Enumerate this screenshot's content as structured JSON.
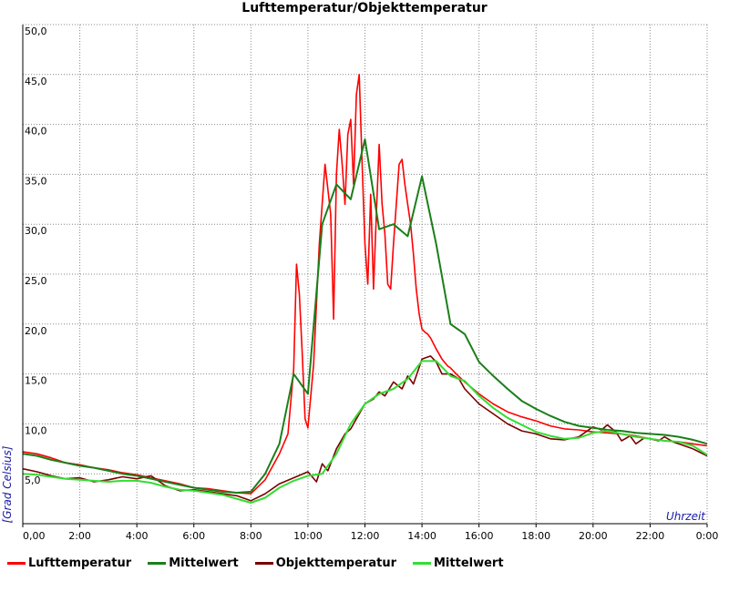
{
  "chart_data": {
    "type": "line",
    "title": "Lufttemperatur/Objekttemperatur",
    "xlabel": "Uhrzeit",
    "ylabel": "[Grad Celsius]",
    "xlim": [
      0,
      24
    ],
    "ylim": [
      0,
      50
    ],
    "x_ticks": [
      "0,00",
      "2:00",
      "4:00",
      "6:00",
      "8:00",
      "10:00",
      "12:00",
      "14:00",
      "16:00",
      "18:00",
      "20:00",
      "22:00",
      "0:00"
    ],
    "y_ticks": [
      "5,0",
      "10,0",
      "15,0",
      "20,0",
      "25,0",
      "30,0",
      "35,0",
      "40,0",
      "45,0",
      "50,0"
    ],
    "grid": true,
    "legend_position": "bottom",
    "series": [
      {
        "name": "Lufttemperatur",
        "color": "#ff0000",
        "x": [
          0,
          0.5,
          1,
          1.5,
          2,
          2.5,
          3,
          3.5,
          4,
          4.5,
          5,
          5.5,
          6,
          6.5,
          7,
          7.5,
          8,
          8.5,
          9,
          9.3,
          9.5,
          9.6,
          9.7,
          9.8,
          9.9,
          10.0,
          10.2,
          10.4,
          10.6,
          10.8,
          10.9,
          11.0,
          11.1,
          11.2,
          11.3,
          11.4,
          11.5,
          11.6,
          11.7,
          11.8,
          11.9,
          12.0,
          12.1,
          12.2,
          12.3,
          12.4,
          12.5,
          12.6,
          12.7,
          12.8,
          12.9,
          13.0,
          13.1,
          13.2,
          13.3,
          13.4,
          13.5,
          13.6,
          13.7,
          13.8,
          13.9,
          14.0,
          14.1,
          14.2,
          14.3,
          14.5,
          14.7,
          14.9,
          15.0,
          15.2,
          15.5,
          16.0,
          16.5,
          17.0,
          17.5,
          18.0,
          18.5,
          19.0,
          19.5,
          20.0,
          20.5,
          21.0,
          21.5,
          22.0,
          22.5,
          23.0,
          23.5,
          24.0
        ],
        "y": [
          7.2,
          7.0,
          6.6,
          6.1,
          5.9,
          5.6,
          5.4,
          5.1,
          4.9,
          4.6,
          4.3,
          4.0,
          3.6,
          3.5,
          3.3,
          3.1,
          3.0,
          4.4,
          7.0,
          9.0,
          15.5,
          26.0,
          23.0,
          17.0,
          10.5,
          9.6,
          16.0,
          28.0,
          36.0,
          31.0,
          20.5,
          35.0,
          39.5,
          36.0,
          32.0,
          39.0,
          40.5,
          34.0,
          43.0,
          45.0,
          36.0,
          28.0,
          24.0,
          33.0,
          23.5,
          31.0,
          38.0,
          32.0,
          29.0,
          24.0,
          23.5,
          28.0,
          32.0,
          36.0,
          36.5,
          34.0,
          32.0,
          30.0,
          27.0,
          23.5,
          21.0,
          19.5,
          19.2,
          19.0,
          18.6,
          17.5,
          16.5,
          15.8,
          15.6,
          15.0,
          14.2,
          13.0,
          12.0,
          11.2,
          10.7,
          10.3,
          9.8,
          9.5,
          9.4,
          9.2,
          9.1,
          9.0,
          8.8,
          8.5,
          8.3,
          8.2,
          8.0,
          7.8
        ]
      },
      {
        "name": "Mittelwert",
        "color": "#1a7f1a",
        "x": [
          0,
          0.5,
          1,
          1.5,
          2,
          2.5,
          3,
          3.5,
          4,
          4.5,
          5,
          5.5,
          6,
          6.5,
          7,
          7.5,
          8,
          8.5,
          9,
          9.5,
          10,
          10.5,
          11,
          11.5,
          12,
          12.5,
          13,
          13.5,
          14,
          14.5,
          15,
          15.5,
          16,
          16.5,
          17,
          17.5,
          18,
          18.5,
          19,
          19.5,
          20,
          20.5,
          21,
          21.5,
          22,
          22.5,
          23,
          23.5,
          24
        ],
        "y": [
          7.0,
          6.8,
          6.4,
          6.1,
          5.8,
          5.6,
          5.3,
          5.0,
          4.8,
          4.5,
          4.2,
          3.9,
          3.6,
          3.4,
          3.2,
          3.1,
          3.2,
          5.0,
          8.0,
          15.0,
          13.0,
          30.0,
          34.0,
          32.5,
          38.5,
          29.5,
          30.0,
          28.8,
          34.8,
          28.0,
          20.0,
          19.0,
          16.2,
          14.8,
          13.5,
          12.3,
          11.5,
          10.8,
          10.2,
          9.8,
          9.6,
          9.4,
          9.3,
          9.1,
          9.0,
          8.9,
          8.7,
          8.4,
          8.0
        ]
      },
      {
        "name": "Objekttemperatur",
        "color": "#7a0000",
        "x": [
          0,
          0.5,
          1,
          1.5,
          2,
          2.5,
          3,
          3.5,
          4,
          4.5,
          5,
          5.5,
          6,
          6.5,
          7,
          7.5,
          8,
          8.5,
          9,
          9.5,
          10,
          10.3,
          10.5,
          10.7,
          11,
          11.3,
          11.5,
          11.7,
          12,
          12.3,
          12.5,
          12.7,
          13,
          13.3,
          13.5,
          13.7,
          14,
          14.3,
          14.5,
          14.7,
          15,
          15.3,
          15.5,
          16,
          16.5,
          17,
          17.5,
          18,
          18.5,
          19,
          19.5,
          20,
          20.3,
          20.5,
          20.8,
          21,
          21.3,
          21.5,
          21.8,
          22,
          22.3,
          22.5,
          22.8,
          23,
          23.5,
          24
        ],
        "y": [
          5.5,
          5.2,
          4.8,
          4.5,
          4.6,
          4.2,
          4.4,
          4.7,
          4.5,
          4.8,
          3.8,
          3.3,
          3.4,
          3.2,
          3.0,
          2.8,
          2.3,
          3.0,
          4.0,
          4.6,
          5.2,
          4.2,
          6.0,
          5.3,
          7.5,
          9.0,
          9.5,
          10.5,
          12.0,
          12.5,
          13.2,
          12.8,
          14.2,
          13.5,
          14.8,
          14.0,
          16.5,
          16.8,
          16.2,
          15.0,
          15.0,
          14.5,
          13.5,
          12.0,
          11.0,
          10.0,
          9.3,
          9.0,
          8.5,
          8.4,
          8.7,
          9.7,
          9.4,
          9.9,
          9.2,
          8.3,
          8.8,
          8.0,
          8.6,
          8.5,
          8.3,
          8.7,
          8.2,
          8.0,
          7.5,
          6.8
        ]
      },
      {
        "name": "Mittelwert",
        "color": "#33dd33",
        "x": [
          0,
          0.5,
          1,
          1.5,
          2,
          2.5,
          3,
          3.5,
          4,
          4.5,
          5,
          5.5,
          6,
          6.5,
          7,
          7.5,
          8,
          8.5,
          9,
          9.5,
          10,
          10.5,
          11,
          11.5,
          12,
          12.5,
          13,
          13.5,
          14,
          14.5,
          15,
          15.5,
          16,
          16.5,
          17,
          17.5,
          18,
          18.5,
          19,
          19.5,
          20,
          20.5,
          21,
          21.5,
          22,
          22.5,
          23,
          23.5,
          24
        ],
        "y": [
          5.0,
          4.9,
          4.7,
          4.5,
          4.4,
          4.3,
          4.2,
          4.3,
          4.3,
          4.1,
          3.7,
          3.4,
          3.3,
          3.1,
          2.9,
          2.5,
          2.1,
          2.6,
          3.6,
          4.3,
          4.8,
          5.0,
          7.0,
          10.0,
          12.0,
          13.0,
          13.5,
          14.5,
          16.3,
          16.3,
          14.8,
          14.3,
          12.8,
          11.6,
          10.6,
          9.9,
          9.2,
          8.8,
          8.5,
          8.6,
          9.1,
          9.3,
          9.0,
          8.7,
          8.5,
          8.3,
          8.2,
          7.8,
          6.9
        ]
      }
    ]
  }
}
